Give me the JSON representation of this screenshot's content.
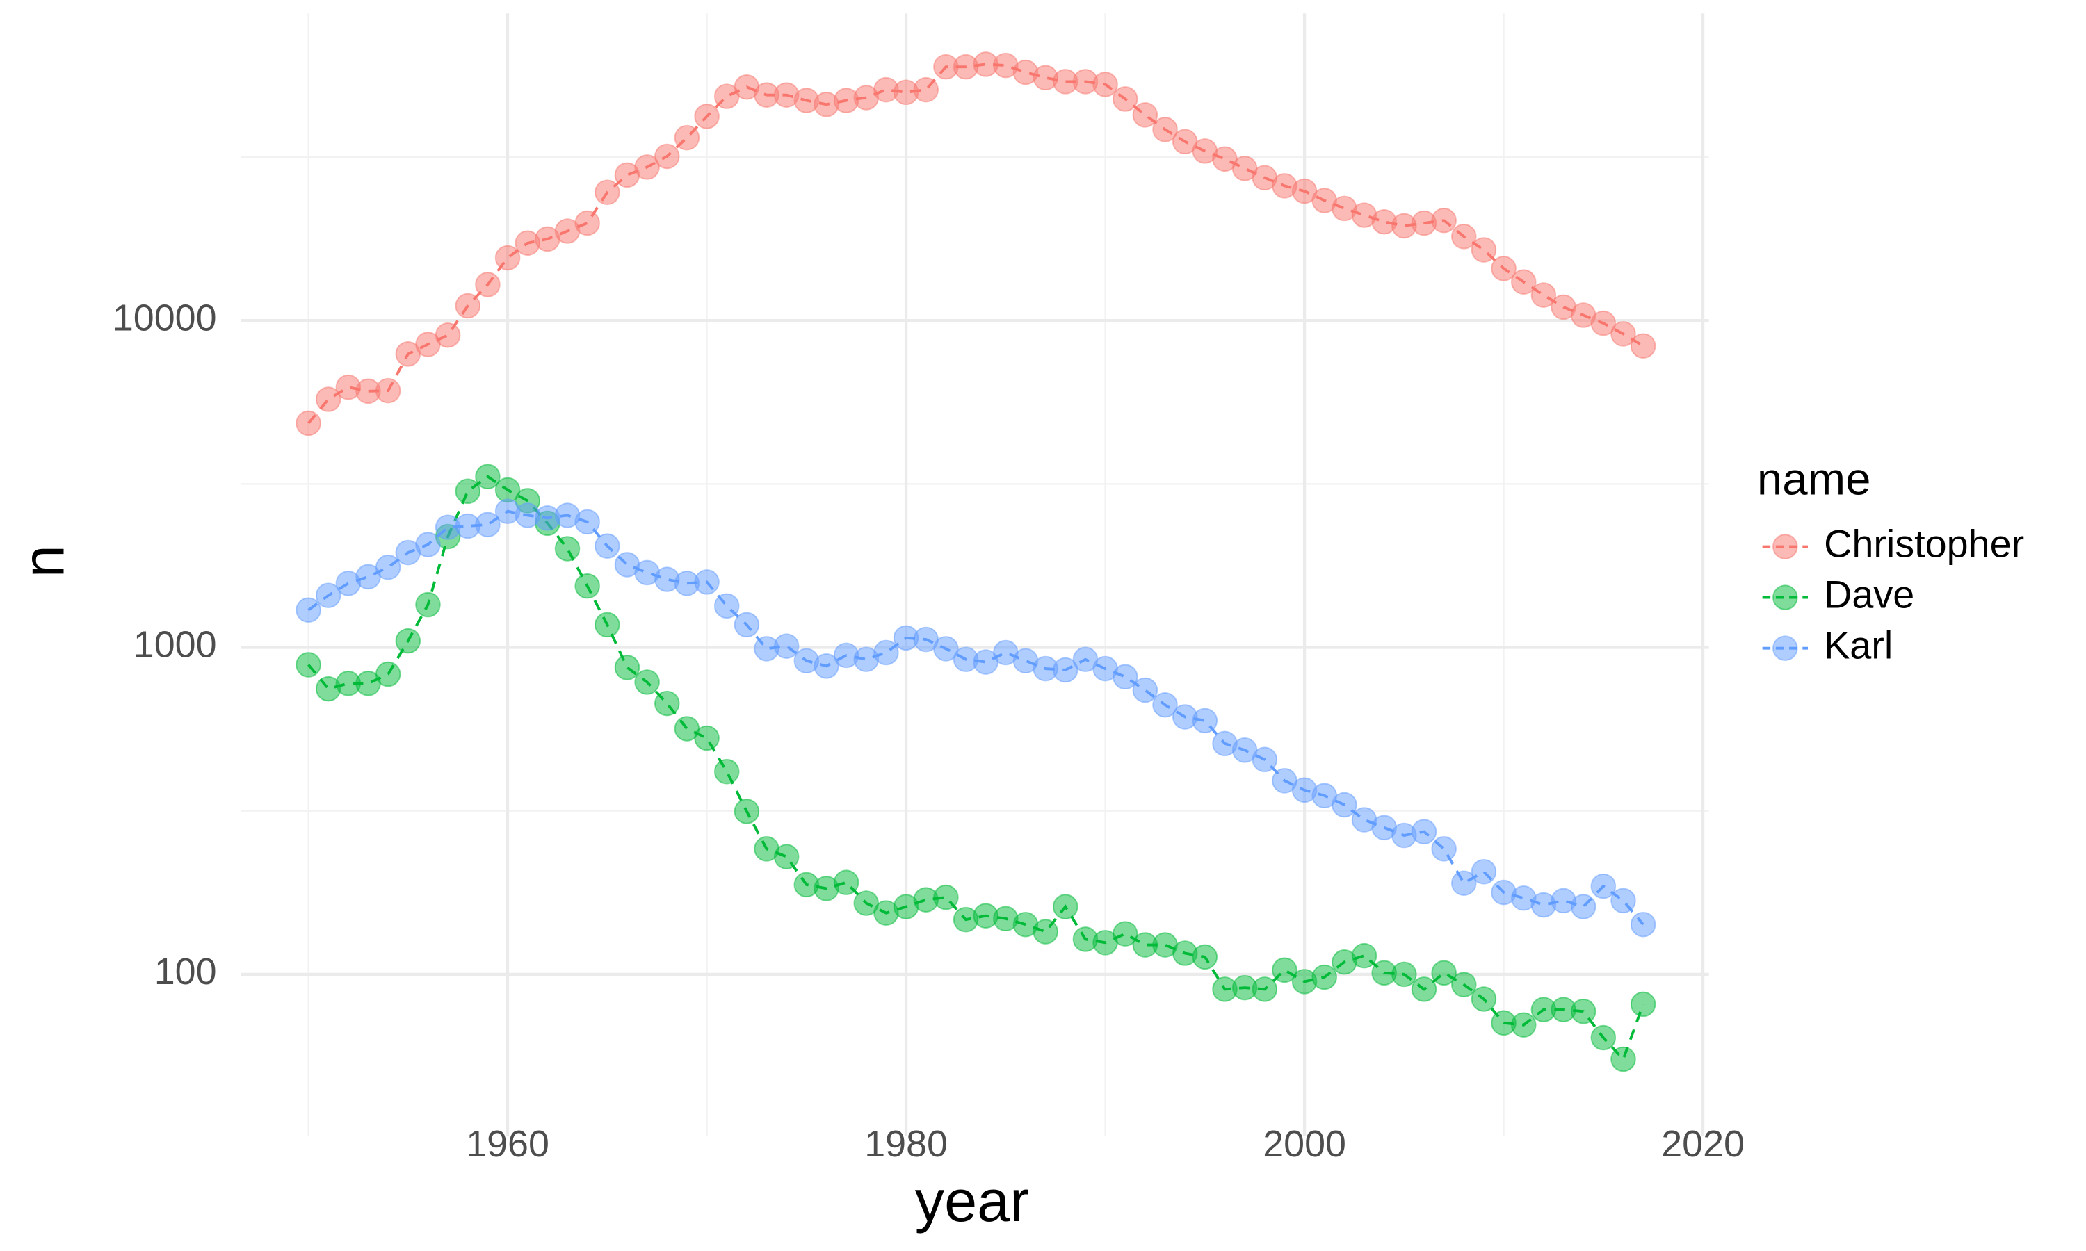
{
  "chart_data": {
    "type": "line",
    "x_label": "year",
    "y_label": "n",
    "legend_title": "name",
    "legend_position": "right",
    "log_y": true,
    "grid": true,
    "x": [
      1950,
      1951,
      1952,
      1953,
      1954,
      1955,
      1956,
      1957,
      1958,
      1959,
      1960,
      1961,
      1962,
      1963,
      1964,
      1965,
      1966,
      1967,
      1968,
      1969,
      1970,
      1971,
      1972,
      1973,
      1974,
      1975,
      1976,
      1977,
      1978,
      1979,
      1980,
      1981,
      1982,
      1983,
      1984,
      1985,
      1986,
      1987,
      1988,
      1989,
      1990,
      1991,
      1992,
      1993,
      1994,
      1995,
      1996,
      1997,
      1998,
      1999,
      2000,
      2001,
      2002,
      2003,
      2004,
      2005,
      2006,
      2007,
      2008,
      2009,
      2010,
      2011,
      2012,
      2013,
      2014,
      2015,
      2016,
      2017
    ],
    "series": [
      {
        "name": "Christopher",
        "color": "#F8766D",
        "values": [
          4850,
          5740,
          6250,
          6080,
          6100,
          7900,
          8450,
          9020,
          11090,
          12880,
          15550,
          17250,
          17750,
          18770,
          19860,
          24660,
          27860,
          29460,
          31770,
          36240,
          42110,
          48500,
          51780,
          48960,
          48960,
          47100,
          45800,
          47100,
          48050,
          50800,
          49900,
          50800,
          59700,
          59700,
          60800,
          60300,
          57450,
          55300,
          53800,
          53800,
          52750,
          47600,
          42550,
          38400,
          35250,
          32980,
          31190,
          29180,
          27330,
          25820,
          24870,
          23280,
          22020,
          21000,
          20030,
          19480,
          19860,
          20230,
          18070,
          16450,
          14420,
          13120,
          11960,
          10990,
          10380,
          9810,
          9100,
          8360
        ]
      },
      {
        "name": "Dave",
        "color": "#00BA38",
        "values": [
          885,
          747,
          776,
          776,
          828,
          1047,
          1351,
          2183,
          3004,
          3330,
          3032,
          2810,
          2398,
          2004,
          1541,
          1173,
          868,
          783,
          674,
          564,
          528,
          417,
          315,
          242,
          229,
          188,
          183,
          191,
          165,
          154,
          161,
          169,
          172,
          147,
          151,
          148,
          142,
          135,
          161,
          128,
          125,
          133,
          123,
          123,
          116,
          113,
          90,
          91,
          90,
          103,
          95,
          98,
          109,
          114,
          101,
          100,
          90,
          101,
          93,
          84,
          71,
          70,
          78,
          78,
          77,
          64,
          55,
          81
        ]
      },
      {
        "name": "Karl",
        "color": "#619CFF",
        "values": [
          1301,
          1442,
          1570,
          1645,
          1758,
          1950,
          2063,
          2330,
          2350,
          2375,
          2608,
          2535,
          2488,
          2535,
          2421,
          2042,
          1791,
          1693,
          1615,
          1570,
          1585,
          1339,
          1173,
          991,
          1009,
          910,
          877,
          946,
          919,
          964,
          1069,
          1058,
          991,
          919,
          902,
          964,
          910,
          861,
          853,
          919,
          861,
          813,
          740,
          667,
          613,
          597,
          508,
          485,
          454,
          391,
          366,
          352,
          330,
          297,
          281,
          266,
          273,
          242,
          190,
          206,
          178,
          171,
          163,
          168,
          161,
          186,
          168,
          142
        ]
      }
    ],
    "xlim": [
      1946.6,
      2020.3
    ],
    "xticks": [
      1960,
      1980,
      2000,
      2020
    ],
    "x_minor_grid": [
      1950,
      1970,
      1990,
      2010
    ],
    "ylim": [
      32,
      87000
    ],
    "yticks": [
      100,
      1000,
      10000
    ],
    "y_minor_grid": [
      316.2,
      3162,
      31623
    ]
  }
}
